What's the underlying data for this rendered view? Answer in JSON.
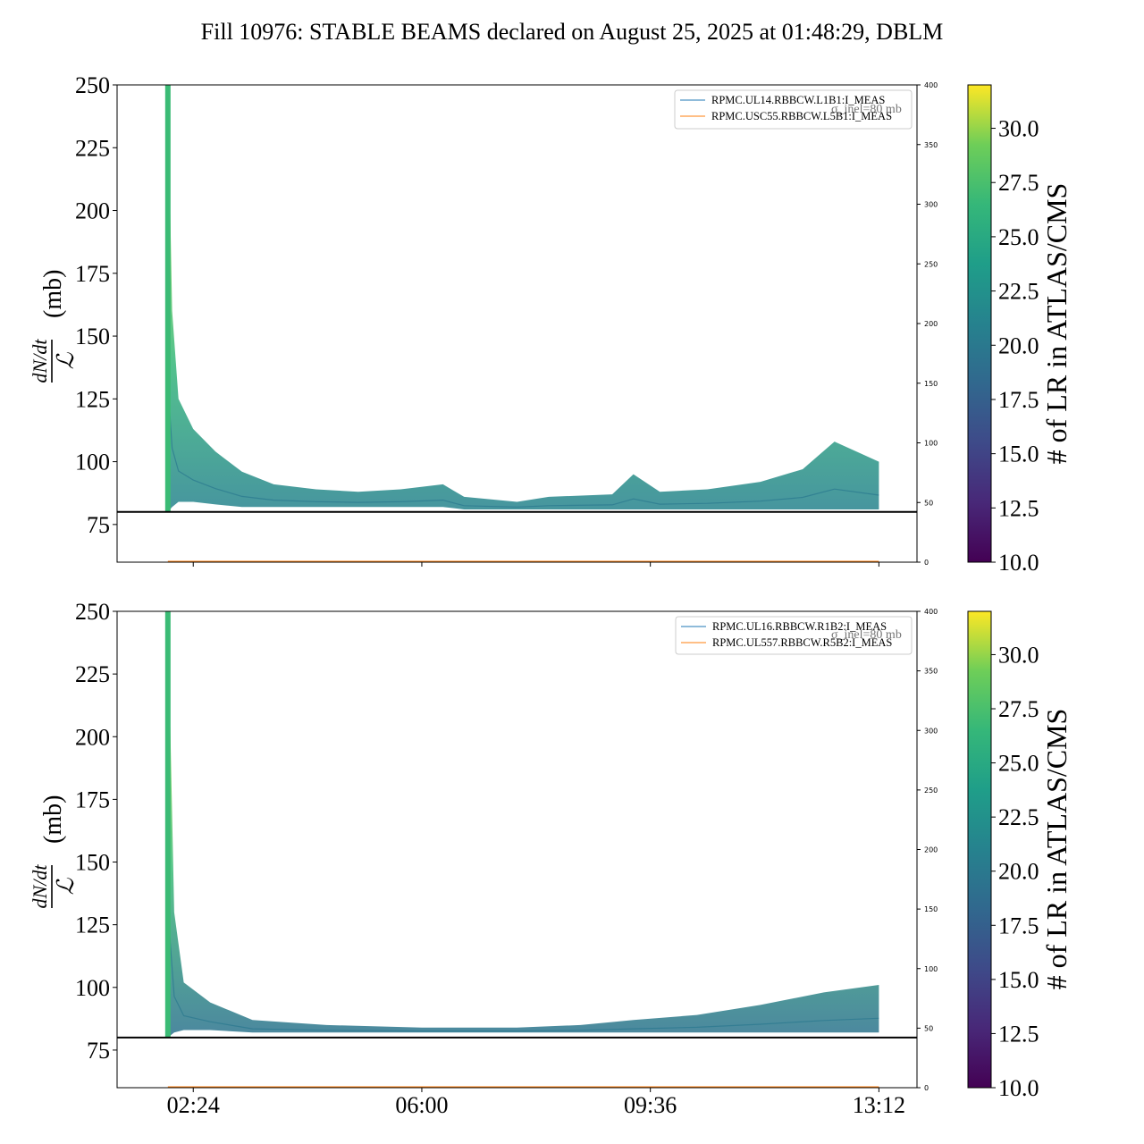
{
  "title": "Fill 10976: STABLE BEAMS declared on August 25, 2025 at 01:48:29, DBLM",
  "colors": {
    "threshold_line": "#000000",
    "legend_series_1": "#1f77b4",
    "legend_series_2": "#ff7f0e",
    "colormap": "viridis"
  },
  "chart_data": [
    {
      "type": "line",
      "panel": "top",
      "ylabel_numerator": "dN/dt",
      "ylabel_denominator": "ℒ",
      "ylabel_unit": "(mb)",
      "ylim": [
        60,
        250
      ],
      "yticks": [
        "75",
        "100",
        "125",
        "150",
        "175",
        "200",
        "225",
        "250"
      ],
      "right_ylim": [
        0,
        400
      ],
      "right_yticks": [
        "0",
        "50",
        "100",
        "150",
        "200",
        "250",
        "300",
        "350",
        "400"
      ],
      "xlim": [
        "01:12",
        "13:48"
      ],
      "xticks": [
        "02:24",
        "06:00",
        "09:36",
        "13:12"
      ],
      "x_start": "02:00",
      "x_end": "13:12",
      "threshold": 80,
      "legend": [
        "RPMC.UL14.RBBCW.L1B1:I_MEAS",
        "RPMC.USC55.RBBCW.L5B1:I_MEAS"
      ],
      "legend_overlay_text": "σ_inel=80 mb",
      "spike_peak": 250,
      "bundle": [
        {
          "x": "02:00",
          "lo": 80,
          "hi": 250
        },
        {
          "x": "02:04",
          "lo": 82,
          "hi": 160
        },
        {
          "x": "02:10",
          "lo": 84,
          "hi": 125
        },
        {
          "x": "02:24",
          "lo": 84,
          "hi": 113
        },
        {
          "x": "02:45",
          "lo": 83,
          "hi": 104
        },
        {
          "x": "03:10",
          "lo": 82,
          "hi": 96
        },
        {
          "x": "03:40",
          "lo": 82,
          "hi": 91
        },
        {
          "x": "04:20",
          "lo": 82,
          "hi": 89
        },
        {
          "x": "05:00",
          "lo": 82,
          "hi": 88
        },
        {
          "x": "05:40",
          "lo": 82,
          "hi": 89
        },
        {
          "x": "06:20",
          "lo": 82,
          "hi": 91
        },
        {
          "x": "06:40",
          "lo": 81,
          "hi": 86
        },
        {
          "x": "07:30",
          "lo": 81,
          "hi": 84
        },
        {
          "x": "08:00",
          "lo": 81,
          "hi": 86
        },
        {
          "x": "09:00",
          "lo": 81,
          "hi": 87
        },
        {
          "x": "09:20",
          "lo": 81,
          "hi": 95
        },
        {
          "x": "09:45",
          "lo": 81,
          "hi": 88
        },
        {
          "x": "10:30",
          "lo": 81,
          "hi": 89
        },
        {
          "x": "11:20",
          "lo": 81,
          "hi": 92
        },
        {
          "x": "12:00",
          "lo": 81,
          "hi": 97
        },
        {
          "x": "12:30",
          "lo": 81,
          "hi": 108
        },
        {
          "x": "13:12",
          "lo": 81,
          "hi": 100
        }
      ]
    },
    {
      "type": "line",
      "panel": "bottom",
      "ylabel_numerator": "dN/dt",
      "ylabel_denominator": "ℒ",
      "ylabel_unit": "(mb)",
      "ylim": [
        60,
        250
      ],
      "yticks": [
        "75",
        "100",
        "125",
        "150",
        "175",
        "200",
        "225",
        "250"
      ],
      "right_ylim": [
        0,
        400
      ],
      "right_yticks": [
        "0",
        "50",
        "100",
        "150",
        "200",
        "250",
        "300",
        "350",
        "400"
      ],
      "xlim": [
        "01:12",
        "13:48"
      ],
      "xticks": [
        "02:24",
        "06:00",
        "09:36",
        "13:12"
      ],
      "x_start": "02:00",
      "x_end": "13:12",
      "threshold": 80,
      "legend": [
        "RPMC.UL16.RBBCW.R1B2:I_MEAS",
        "RPMC.UL557.RBBCW.R5B2:I_MEAS"
      ],
      "legend_overlay_text": "σ_inel=80 mb",
      "spike_peak": 250,
      "bundle": [
        {
          "x": "02:00",
          "lo": 80,
          "hi": 250
        },
        {
          "x": "02:06",
          "lo": 82,
          "hi": 130
        },
        {
          "x": "02:15",
          "lo": 83,
          "hi": 102
        },
        {
          "x": "02:40",
          "lo": 83,
          "hi": 94
        },
        {
          "x": "03:20",
          "lo": 82,
          "hi": 87
        },
        {
          "x": "04:30",
          "lo": 82,
          "hi": 85
        },
        {
          "x": "06:00",
          "lo": 82,
          "hi": 84
        },
        {
          "x": "07:30",
          "lo": 82,
          "hi": 84
        },
        {
          "x": "08:30",
          "lo": 82,
          "hi": 85
        },
        {
          "x": "09:20",
          "lo": 82,
          "hi": 87
        },
        {
          "x": "10:20",
          "lo": 82,
          "hi": 89
        },
        {
          "x": "11:20",
          "lo": 82,
          "hi": 93
        },
        {
          "x": "12:20",
          "lo": 82,
          "hi": 98
        },
        {
          "x": "13:12",
          "lo": 82,
          "hi": 101
        }
      ]
    }
  ],
  "colorbars": [
    {
      "label": "# of LR in ATLAS/CMS",
      "range": [
        10,
        32
      ],
      "ticks": [
        "10.0",
        "12.5",
        "15.0",
        "17.5",
        "20.0",
        "22.5",
        "25.0",
        "27.5",
        "30.0"
      ]
    },
    {
      "label": "# of LR in ATLAS/CMS",
      "range": [
        10,
        32
      ],
      "ticks": [
        "10.0",
        "12.5",
        "15.0",
        "17.5",
        "20.0",
        "22.5",
        "25.0",
        "27.5",
        "30.0"
      ]
    }
  ]
}
